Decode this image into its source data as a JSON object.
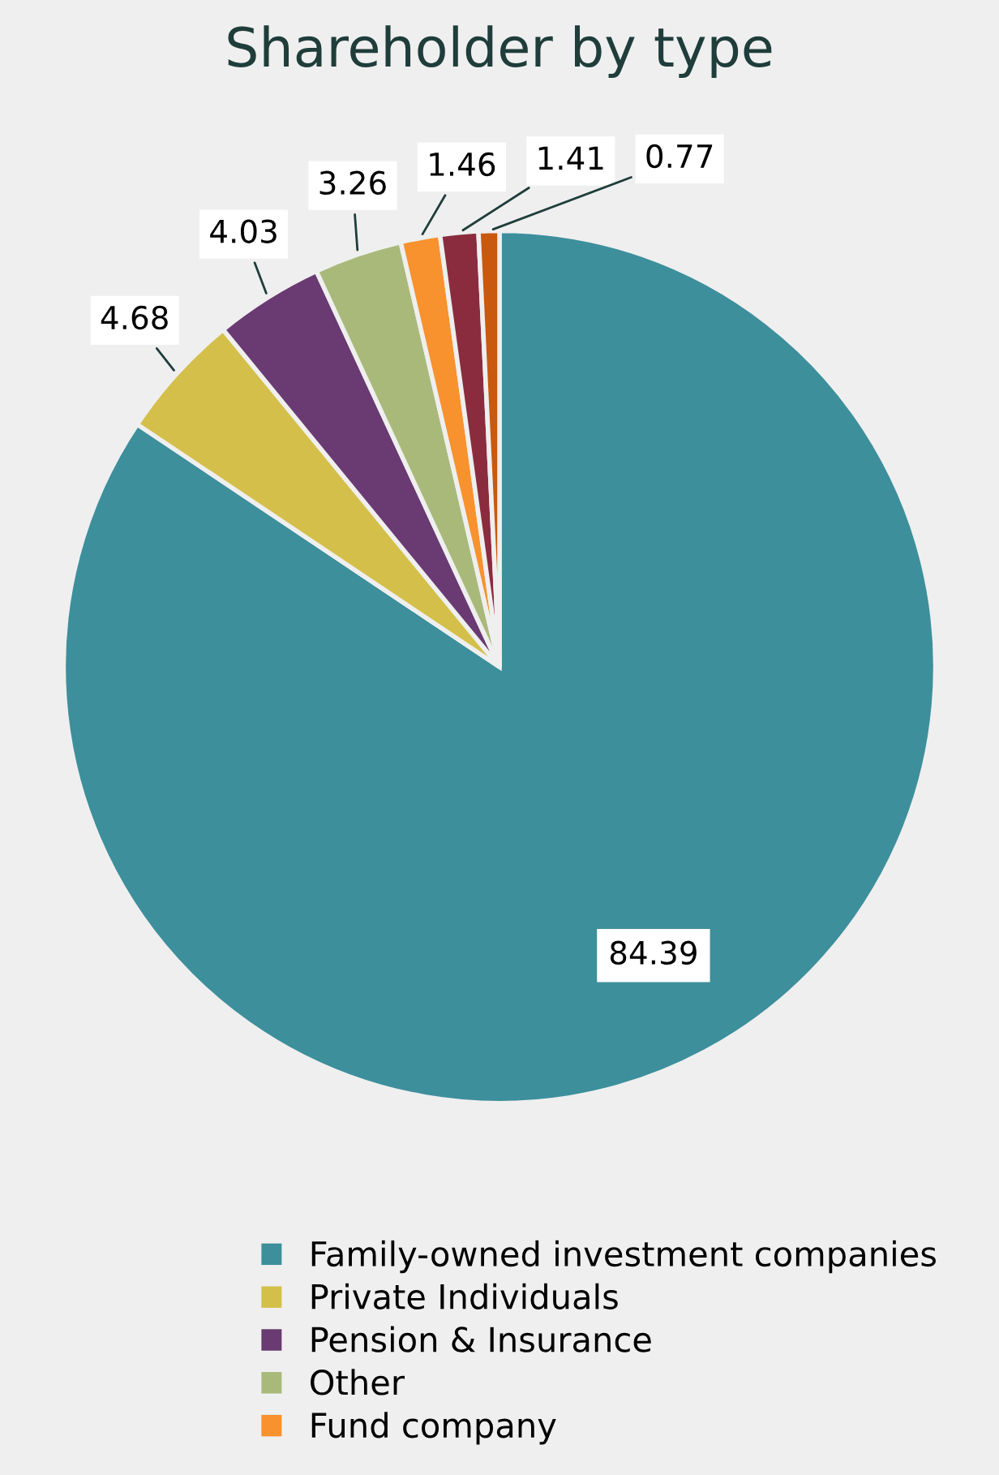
{
  "chart_data": {
    "type": "pie",
    "title": "Shareholder by type",
    "categories": [
      "Family-owned investment companies",
      "Private Individuals",
      "Pension & Insurance",
      "Other",
      "Fund company",
      null,
      null
    ],
    "values": [
      84.39,
      4.68,
      4.03,
      3.26,
      1.46,
      1.41,
      0.77
    ],
    "colors": [
      "#3d8f9c",
      "#d4bf4a",
      "#6a3a72",
      "#a9b97a",
      "#f7922e",
      "#8b2c3e",
      "#c8590f"
    ],
    "data_labels": true,
    "legend": "bottom"
  }
}
